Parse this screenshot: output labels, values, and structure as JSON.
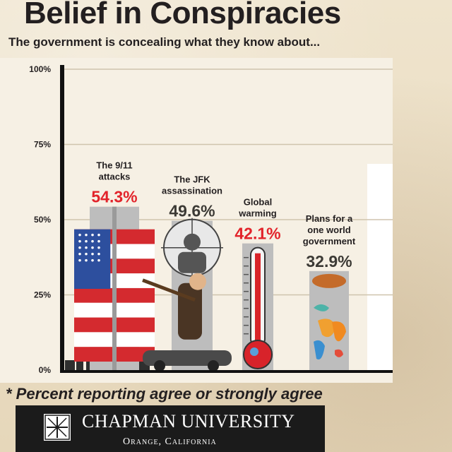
{
  "chart_data": {
    "type": "bar",
    "title": "Belief in Conspiracies",
    "subtitle": "The government is concealing what they know about...",
    "categories": [
      "The 9/11 attacks",
      "The JFK assassination",
      "Global warming",
      "Plans for a one world government"
    ],
    "category_lines": [
      [
        "The 9/11",
        "attacks"
      ],
      [
        "The JFK",
        "assassination"
      ],
      [
        "Global",
        "warming"
      ],
      [
        "Plans for a",
        "one world",
        "government"
      ]
    ],
    "values": [
      54.3,
      49.6,
      42.1,
      32.9
    ],
    "value_labels": [
      "54.3%",
      "49.6%",
      "42.1%",
      "32.9%"
    ],
    "value_colors": [
      "#e2232a",
      "#3c3a35",
      "#e2232a",
      "#3c3a35"
    ],
    "ylim": [
      0,
      100
    ],
    "yticks": [
      {
        "value": 0,
        "label": "0%"
      },
      {
        "value": 25,
        "label": "25%"
      },
      {
        "value": 50,
        "label": "50%"
      },
      {
        "value": 75,
        "label": "75%"
      },
      {
        "value": 100,
        "label": "100%"
      }
    ],
    "grid": true,
    "footnote": "* Percent reporting agree or strongly agree"
  },
  "footer": {
    "name": "Chapman University",
    "name_display": "CHAPMAN UNIVERSITY",
    "location": "Orange, California"
  },
  "icons": [
    "twin-towers-flag-icon",
    "jfk-target-scope-icon",
    "thermometer-icon",
    "world-map-icon"
  ],
  "colors": {
    "accent_red": "#e2232a",
    "text_dark": "#231f20",
    "axis": "#111111",
    "footer_bg": "#1b1b1b"
  }
}
